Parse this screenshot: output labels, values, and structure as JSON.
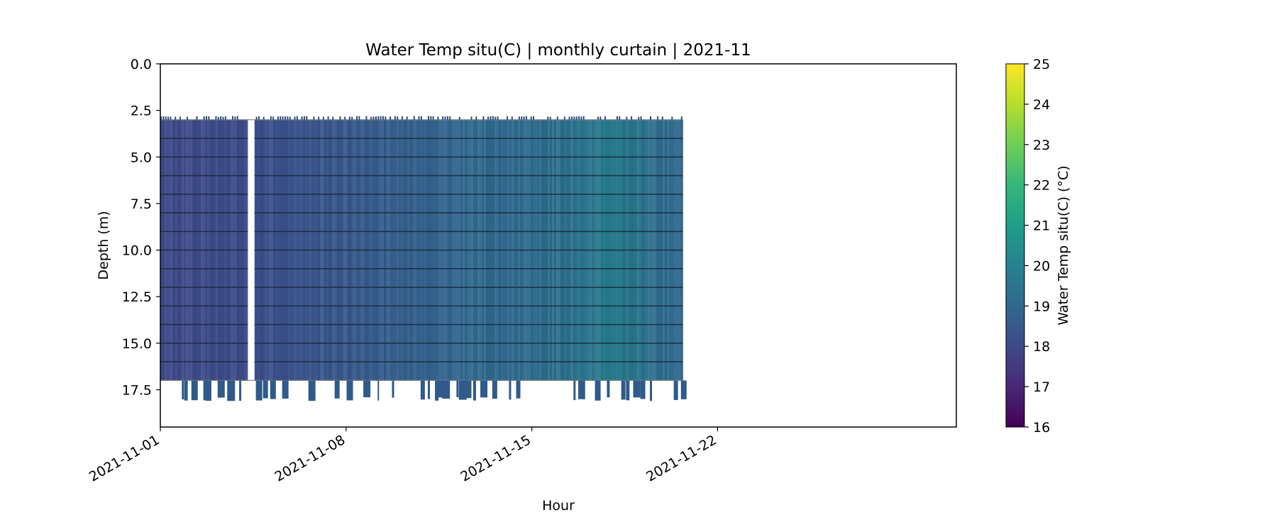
{
  "chart_data": {
    "type": "heatmap",
    "title": "Water Temp situ(C) | monthly curtain | 2021-11",
    "xlabel": "Hour",
    "ylabel": "Depth (m)",
    "x_ticks": [
      "2021-11-01",
      "2021-11-08",
      "2021-11-15",
      "2021-11-22"
    ],
    "x_range": [
      "2021-11-01",
      "2021-12-01"
    ],
    "y_ticks": [
      "0.0",
      "2.5",
      "5.0",
      "7.5",
      "10.0",
      "12.5",
      "15.0",
      "17.5"
    ],
    "ylim": [
      19.5,
      0
    ],
    "y_inverted": true,
    "grid": false,
    "colorbar": {
      "label": "Water Temp situ(C) (°C)",
      "range": [
        16,
        25
      ],
      "ticks": [
        "16",
        "17",
        "18",
        "19",
        "20",
        "21",
        "22",
        "23",
        "24",
        "25"
      ],
      "colormap": "viridis"
    },
    "data_extent": {
      "start": "2021-11-01",
      "end": "2021-11-20.7",
      "gap": [
        "2021-11-04.3",
        "2021-11-04.55"
      ],
      "depth_top": 3.0,
      "depth_bottom": 17.0
    },
    "sensor_depths": [
      4,
      5,
      6,
      7,
      8,
      9,
      10,
      11,
      12,
      13,
      14,
      15,
      16
    ],
    "temperature_profile": [
      {
        "date": "2021-11-01",
        "temp": 18.0
      },
      {
        "date": "2021-11-04",
        "temp": 18.1
      },
      {
        "date": "2021-11-06",
        "temp": 18.3
      },
      {
        "date": "2021-11-08",
        "temp": 18.5
      },
      {
        "date": "2021-11-10",
        "temp": 18.7
      },
      {
        "date": "2021-11-12",
        "temp": 18.9
      },
      {
        "date": "2021-11-13",
        "temp": 19.1
      },
      {
        "date": "2021-11-14",
        "temp": 19.0
      },
      {
        "date": "2021-11-15",
        "temp": 19.2
      },
      {
        "date": "2021-11-16",
        "temp": 19.3
      },
      {
        "date": "2021-11-17",
        "temp": 19.5
      },
      {
        "date": "2021-11-18",
        "temp": 19.8
      },
      {
        "date": "2021-11-19",
        "temp": 19.5
      },
      {
        "date": "2021-11-20",
        "temp": 19.2
      },
      {
        "date": "2021-11-20.7",
        "temp": 19.0
      }
    ]
  }
}
